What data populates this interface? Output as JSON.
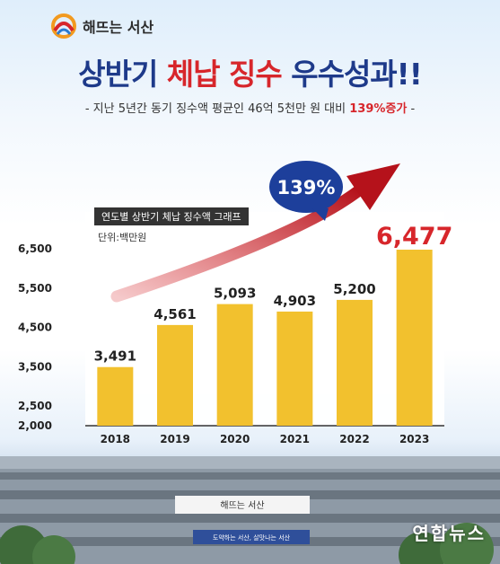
{
  "brand": {
    "name": "해뜨는 서산"
  },
  "headline": {
    "part1": "상반기 ",
    "part2": "체납 징수",
    "part3": " 우수성과!!"
  },
  "subheadline": {
    "text": "- 지난 5년간 동기 징수액 평균인 46억 5천만 원 대비 ",
    "highlight": "139%증가",
    "end": " -"
  },
  "badge": {
    "text": "139%"
  },
  "building_signs": {
    "top": "해뜨는 서산",
    "banner": "도약하는 서산, 살맛나는 서산"
  },
  "watermark": {
    "main": "연합뉴스"
  },
  "colors": {
    "bar": "#f2c12e",
    "accent_red": "#d7262b",
    "navy": "#1e3a8a",
    "badge": "#1d3f9b"
  },
  "chart_data": {
    "type": "bar",
    "title": "연도별 상반기 체납 징수액 그래프",
    "unit": "단위:백만원",
    "categories": [
      "2018",
      "2019",
      "2020",
      "2021",
      "2022",
      "2023"
    ],
    "values": [
      3491,
      4561,
      5093,
      4903,
      5200,
      6477
    ],
    "value_labels": [
      "3,491",
      "4,561",
      "5,093",
      "4,903",
      "5,200",
      "6,477"
    ],
    "y_ticks": [
      "2,000",
      "2,500",
      "3,500",
      "4,500",
      "5,500",
      "6,500"
    ],
    "grid": false,
    "legend": "none"
  }
}
